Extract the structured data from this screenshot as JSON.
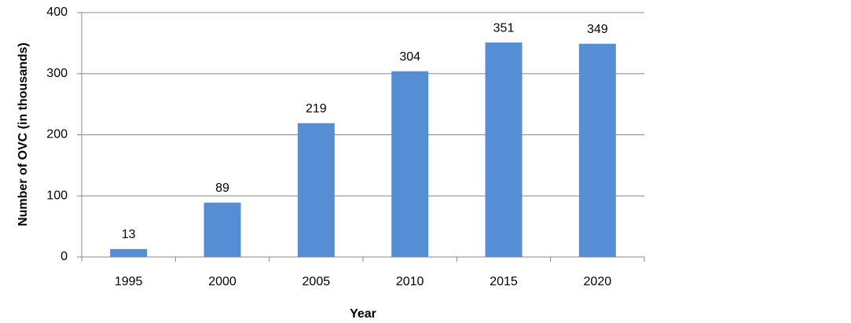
{
  "chart_data": {
    "type": "bar",
    "x_label": "Year",
    "y_label": "Number of OVC (in thousands)",
    "categories": [
      "1995",
      "2000",
      "2005",
      "2010",
      "2015",
      "2020"
    ],
    "values": [
      13,
      89,
      219,
      304,
      351,
      349
    ],
    "color": "#558ed5",
    "ylim": [
      0,
      400
    ],
    "yticks": [
      0,
      100,
      200,
      300,
      400
    ],
    "grid": true
  }
}
